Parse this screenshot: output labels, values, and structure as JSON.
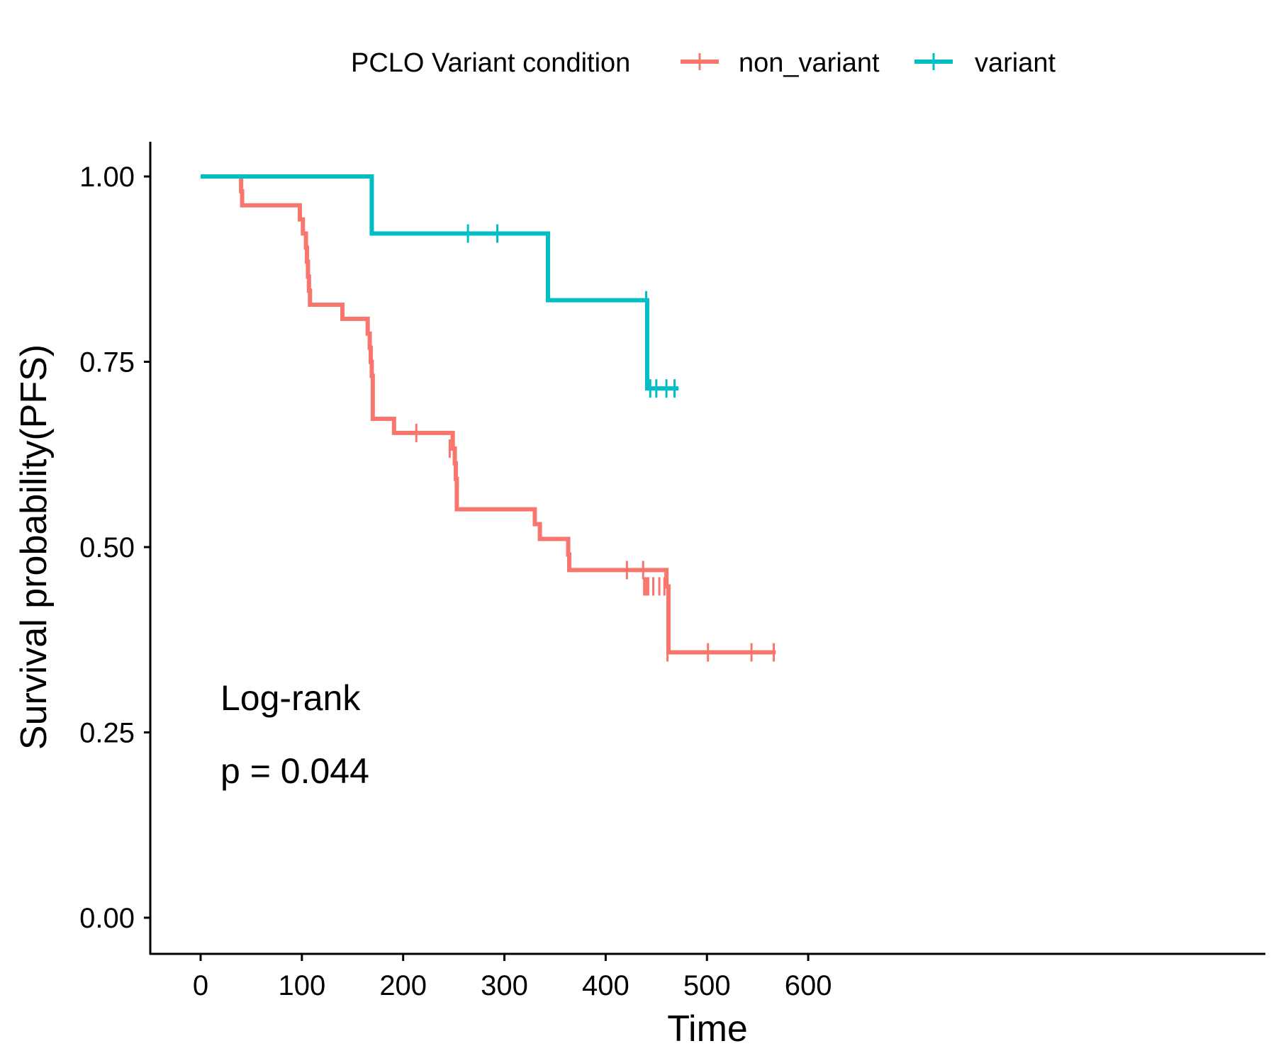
{
  "chart_data": {
    "type": "line",
    "subtype": "kaplan-meier step",
    "title": "",
    "xlabel": "Time",
    "ylabel": "Survival probability(PFS)",
    "xlim": [
      -30,
      630
    ],
    "ylim": [
      -0.05,
      1.05
    ],
    "xticks": [
      0,
      100,
      200,
      300,
      400,
      500,
      600
    ],
    "xtick_labels": [
      "0",
      "100",
      "200",
      "300",
      "400",
      "500",
      "600"
    ],
    "yticks": [
      0,
      0.25,
      0.5,
      0.75,
      1
    ],
    "ytick_labels": [
      "0.00",
      "0.25",
      "0.50",
      "0.75",
      "1.00"
    ],
    "grid": false,
    "legend": {
      "title": "PCLO Variant condition",
      "position": "top"
    },
    "annotations": [
      "Log-rank",
      "p = 0.044"
    ],
    "series": [
      {
        "name": "non_variant",
        "color": "#F8766D",
        "steps": [
          [
            0,
            1.0
          ],
          [
            40,
            0.98
          ],
          [
            41,
            0.961
          ],
          [
            98,
            0.942
          ],
          [
            101,
            0.923
          ],
          [
            104,
            0.904
          ],
          [
            105,
            0.885
          ],
          [
            106,
            0.865
          ],
          [
            107,
            0.846
          ],
          [
            108,
            0.827
          ],
          [
            140,
            0.808
          ],
          [
            165,
            0.788
          ],
          [
            167,
            0.769
          ],
          [
            168,
            0.75
          ],
          [
            169,
            0.731
          ],
          [
            170,
            0.673
          ],
          [
            191,
            0.654
          ],
          [
            249,
            0.633
          ],
          [
            251,
            0.613
          ],
          [
            252,
            0.592
          ],
          [
            253,
            0.551
          ],
          [
            330,
            0.531
          ],
          [
            335,
            0.511
          ],
          [
            363,
            0.49
          ],
          [
            364,
            0.469
          ],
          [
            460,
            0.447
          ],
          [
            462,
            0.358
          ]
        ],
        "end_x": 568,
        "censored": [
          [
            213,
            0.654
          ],
          [
            246,
            0.633
          ],
          [
            421,
            0.469
          ],
          [
            437,
            0.469
          ],
          [
            438,
            0.447
          ],
          [
            440,
            0.447
          ],
          [
            442,
            0.447
          ],
          [
            447,
            0.447
          ],
          [
            453,
            0.447
          ],
          [
            458,
            0.447
          ],
          [
            461,
            0.358
          ],
          [
            501,
            0.358
          ],
          [
            544,
            0.358
          ],
          [
            566,
            0.358
          ]
        ]
      },
      {
        "name": "variant",
        "color": "#00BFC4",
        "steps": [
          [
            0,
            1.0
          ],
          [
            169,
            0.923
          ],
          [
            343,
            0.833
          ],
          [
            441,
            0.714
          ]
        ],
        "end_x": 472,
        "censored": [
          [
            264,
            0.923
          ],
          [
            293,
            0.923
          ],
          [
            440,
            0.833
          ],
          [
            444,
            0.714
          ],
          [
            450,
            0.714
          ],
          [
            460,
            0.714
          ],
          [
            468,
            0.714
          ]
        ]
      }
    ]
  }
}
